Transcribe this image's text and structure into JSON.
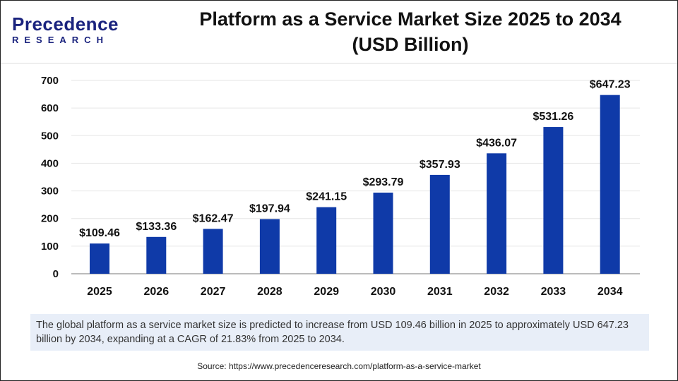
{
  "logo": {
    "line1": "Precedence",
    "line2": "RESEARCH"
  },
  "title_line1": "Platform as a Service Market Size 2025 to 2034",
  "title_line2": "(USD Billion)",
  "chart_data": {
    "type": "bar",
    "title": "Platform as a Service Market Size 2025 to 2034 (USD Billion)",
    "categories": [
      "2025",
      "2026",
      "2027",
      "2028",
      "2029",
      "2030",
      "2031",
      "2032",
      "2033",
      "2034"
    ],
    "values": [
      109.46,
      133.36,
      162.47,
      197.94,
      241.15,
      293.79,
      357.93,
      436.07,
      531.26,
      647.23
    ],
    "data_labels": [
      "$109.46",
      "$133.36",
      "$162.47",
      "$197.94",
      "$241.15",
      "$293.79",
      "$357.93",
      "$436.07",
      "$531.26",
      "$647.23"
    ],
    "yticks": [
      0,
      100,
      200,
      300,
      400,
      500,
      600,
      700
    ],
    "ylim": [
      0,
      700
    ],
    "grid": true,
    "bar_color": "#0f3aa8"
  },
  "caption": "The global platform as a service market size is predicted to increase from USD 109.46 billion in 2025 to approximately USD 647.23 billion by 2034, expanding at a CAGR of 21.83% from 2025 to 2034.",
  "source": "Source: https://www.precedenceresearch.com/platform-as-a-service-market"
}
